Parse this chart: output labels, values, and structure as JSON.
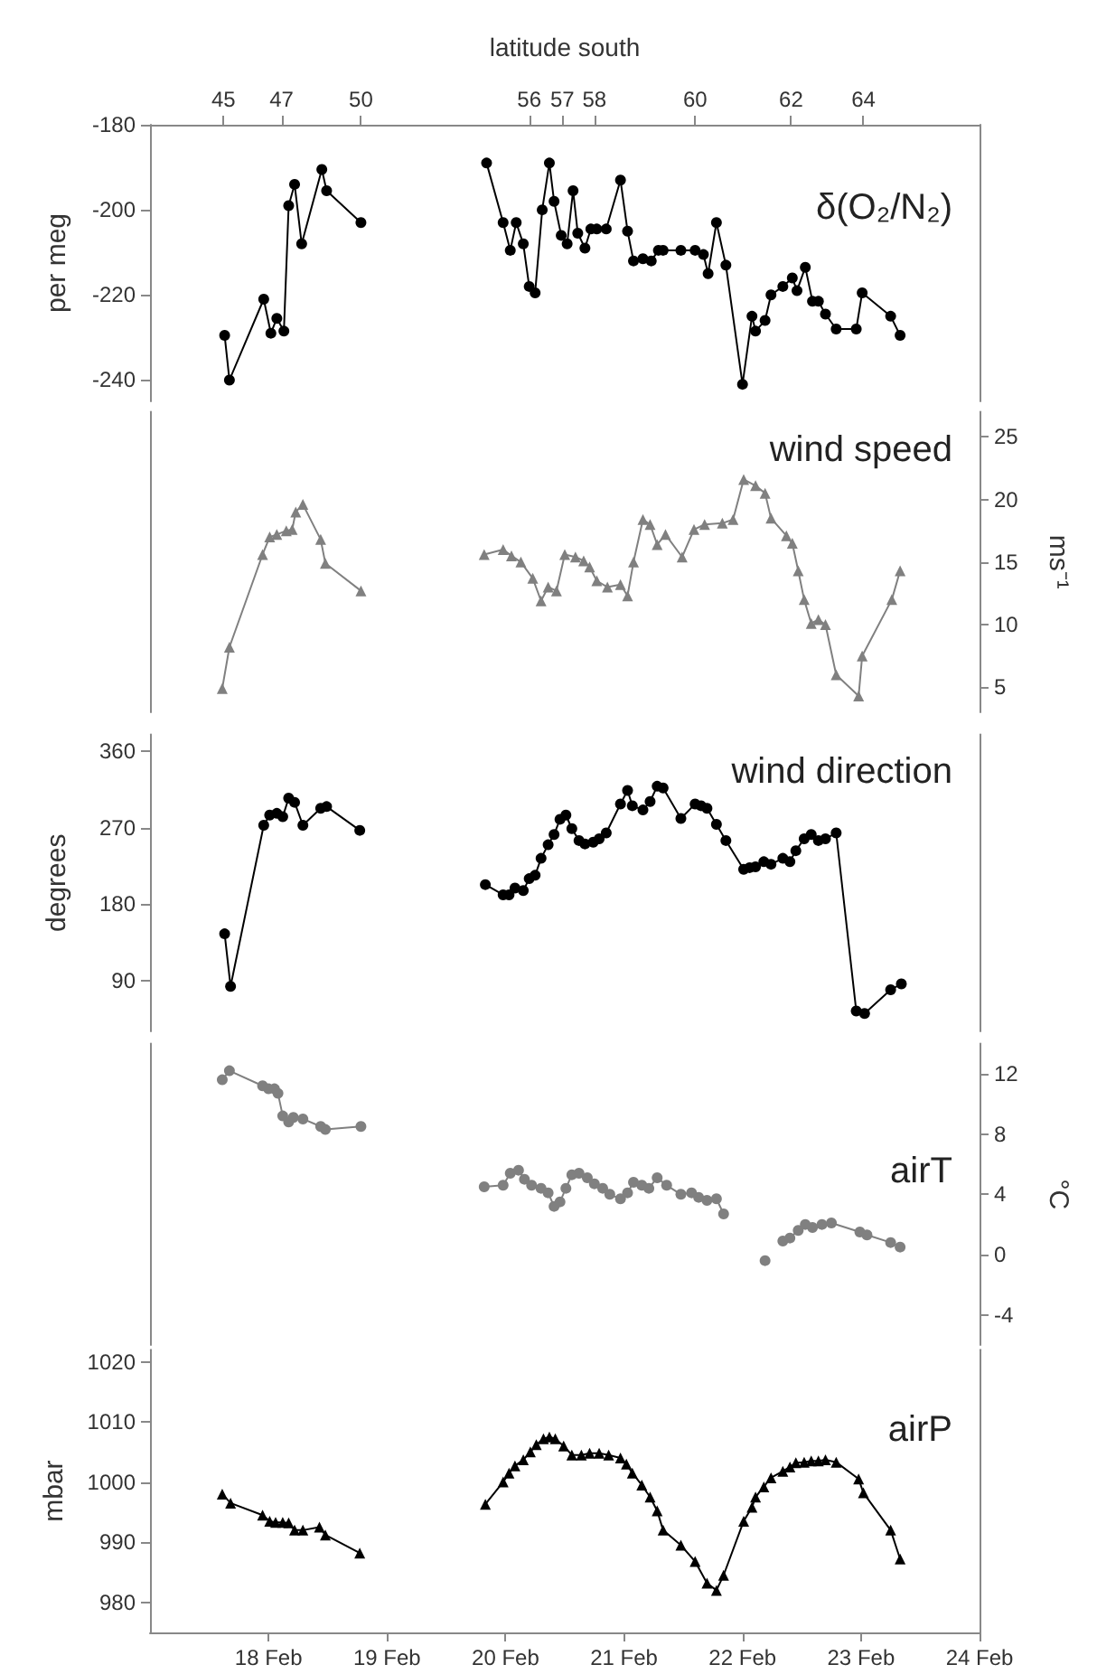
{
  "chart_data": [
    {
      "type": "line",
      "title": "δ(O₂/N₂)",
      "ylabel": "per meg",
      "x2label": "latitude south",
      "xlim": [
        "--02-17",
        "--02-24"
      ],
      "x2lim": [
        "--02-17",
        "--02-24"
      ],
      "x2ticks": [
        {
          "value": "--02-17T14:53",
          "label": "45"
        },
        {
          "value": "--02-18T02:38",
          "label": "47"
        },
        {
          "value": "--02-18T18:43",
          "label": "50"
        },
        {
          "value": "--02-20T04:48",
          "label": "56"
        },
        {
          "value": "--02-20T11:31",
          "label": "57"
        },
        {
          "value": "--02-20T18:00",
          "label": "58"
        },
        {
          "value": "--02-21T14:24",
          "label": "60"
        },
        {
          "value": "--02-22T09:50",
          "label": "62"
        },
        {
          "value": "--02-23T00:29",
          "label": "64"
        }
      ],
      "ylim": [
        -245,
        -180
      ],
      "yticks": [
        -240,
        -220,
        -200,
        -180
      ],
      "tick_labels": "y",
      "marker": "circle",
      "line_style": "solid",
      "x": [
        "--02-17T15:07",
        "--02-17T16:05",
        "--02-17T23:02",
        "--02-18T00:29",
        "--02-18T01:41",
        "--02-18T03:07",
        "--02-18T04:05",
        "--02-18T05:17",
        "--02-18T06:43",
        "--02-18T10:48",
        "--02-18T11:46",
        "--02-18T18:43",
        "--02-19T07:12",
        "--02-19T20:10",
        "--02-19T23:31",
        "--02-20T00:58",
        "--02-20T02:10",
        "--02-20T03:36",
        "--02-20T04:48",
        "--02-20T06:00",
        "--02-20T07:26",
        "--02-20T08:53",
        "--02-20T09:50",
        "--02-20T11:17",
        "--02-20T12:29",
        "--02-20T13:41",
        "--02-20T14:38",
        "--02-20T16:05",
        "--02-20T17:17",
        "--02-20T18:29",
        "--02-20T20:24",
        "--02-20T23:17",
        "--02-21T00:43",
        "--02-21T01:55",
        "--02-21T03:50",
        "--02-21T05:31",
        "--02-21T06:58",
        "--02-21T07:55",
        "--02-21T11:31",
        "--02-21T14:24",
        "--02-21T16:05",
        "--02-21T17:02",
        "--02-21T18:43",
        "--02-21T20:38",
        "--02-22T00:00",
        "--02-22T01:55",
        "--02-22T02:38",
        "--02-22T04:34",
        "--02-22T05:46",
        "--02-22T08:10",
        "--02-22T10:05",
        "--02-22T11:02",
        "--02-22T12:43",
        "--02-22T14:10",
        "--02-22T15:22",
        "--02-22T16:48",
        "--02-22T18:58",
        "--02-22T23:02",
        "--02-23T00:14",
        "--02-23T06:00",
        "--02-23T07:55"
      ],
      "series": [
        {
          "color": "#000000",
          "values": [
            -229.5,
            -240,
            -221,
            -229,
            -225.5,
            -228.5,
            -199,
            -194,
            -208,
            -190.5,
            -195.5,
            -203,
            null,
            -189,
            -203,
            -209.5,
            -203,
            -208,
            -218,
            -219.5,
            -200,
            -189,
            -198,
            -206,
            -208,
            -195.5,
            -205.5,
            -209,
            -204.5,
            -204.5,
            -204.5,
            -193,
            -205,
            -212,
            -211.5,
            -212,
            -209.5,
            -209.5,
            -209.5,
            -209.5,
            -210.5,
            -215,
            -203,
            -213,
            -241,
            -225,
            -228.5,
            -226,
            -220,
            -218,
            -216,
            -219,
            -213.5,
            -221.5,
            -221.5,
            -224.5,
            -228,
            -228,
            -219.5,
            -225,
            -229.5
          ]
        }
      ]
    },
    {
      "type": "line",
      "title": "wind speed",
      "y2label": "ms⁻¹",
      "xlim": [
        "--02-17",
        "--02-24"
      ],
      "y2lim": [
        3,
        27
      ],
      "y2ticks": [
        5,
        10,
        15,
        20,
        25
      ],
      "tick_labels": "y2",
      "marker": "triangle",
      "line_style": "solid",
      "x": [
        "--02-17T14:38",
        "--02-17T16:05",
        "--02-17T22:48",
        "--02-18T00:14",
        "--02-18T01:41",
        "--02-18T03:36",
        "--02-18T04:48",
        "--02-18T05:31",
        "--02-18T06:58",
        "--02-18T10:34",
        "--02-18T11:31",
        "--02-18T18:43",
        "--02-19T07:12",
        "--02-19T19:41",
        "--02-19T23:31",
        "--02-20T01:12",
        "--02-20T03:07",
        "--02-20T05:31",
        "--02-20T07:12",
        "--02-20T08:38",
        "--02-20T10:19",
        "--02-20T12:00",
        "--02-20T14:10",
        "--02-20T15:50",
        "--02-20T17:02",
        "--02-20T18:29",
        "--02-20T20:38",
        "--02-20T23:17",
        "--02-21T00:43",
        "--02-21T01:55",
        "--02-21T03:50",
        "--02-21T05:17",
        "--02-21T06:43",
        "--02-21T08:24",
        "--02-21T11:46",
        "--02-21T14:10",
        "--02-21T16:19",
        "--02-21T19:55",
        "--02-21T22:05",
        "--02-22T00:14",
        "--02-22T02:38",
        "--02-22T04:34",
        "--02-22T05:46",
        "--02-22T08:53",
        "--02-22T10:05",
        "--02-22T11:17",
        "--02-22T12:29",
        "--02-22T13:55",
        "--02-22T15:22",
        "--02-22T16:48",
        "--02-22T18:58",
        "--02-22T23:31",
        "--02-23T00:14",
        "--02-23T06:14",
        "--02-23T07:55"
      ],
      "series": [
        {
          "color": "#808080",
          "axis": "y2",
          "values": [
            4.9,
            8.2,
            15.6,
            17,
            17.2,
            17.5,
            17.6,
            19,
            19.6,
            16.8,
            14.9,
            12.7,
            null,
            15.6,
            16,
            15.5,
            15,
            13.7,
            11.9,
            13,
            12.7,
            15.6,
            15.4,
            15.1,
            14.6,
            13.5,
            13,
            13.2,
            12.3,
            15,
            18.4,
            18,
            16.4,
            17.2,
            15.4,
            17.6,
            18,
            18.1,
            18.4,
            21.6,
            21.1,
            20.5,
            18.5,
            17.1,
            16.5,
            14.3,
            12,
            10.1,
            10.4,
            10,
            6,
            4.3,
            7.5,
            12,
            14.3
          ]
        }
      ]
    },
    {
      "type": "line",
      "title": "wind direction",
      "ylabel": "degrees",
      "xlim": [
        "--02-17",
        "--02-24"
      ],
      "ylim": [
        30,
        380
      ],
      "yticks": [
        90,
        180,
        270,
        360
      ],
      "tick_labels": "y",
      "marker": "circle",
      "line_style": "solid",
      "x": [
        "--02-17T15:07",
        "--02-17T16:19",
        "--02-17T23:02",
        "--02-18T00:14",
        "--02-18T01:41",
        "--02-18T02:53",
        "--02-18T04:05",
        "--02-18T05:17",
        "--02-18T06:58",
        "--02-18T10:34",
        "--02-18T11:46",
        "--02-18T18:29",
        "--02-19T07:12",
        "--02-19T19:55",
        "--02-19T23:31",
        "--02-20T00:43",
        "--02-20T01:55",
        "--02-20T03:36",
        "--02-20T04:48",
        "--02-20T06:00",
        "--02-20T07:12",
        "--02-20T08:38",
        "--02-20T09:50",
        "--02-20T11:02",
        "--02-20T12:14",
        "--02-20T13:26",
        "--02-20T14:53",
        "--02-20T16:05",
        "--02-20T17:46",
        "--02-20T18:58",
        "--02-20T20:24",
        "--02-20T23:17",
        "--02-21T00:43",
        "--02-21T01:41",
        "--02-21T03:50",
        "--02-21T05:17",
        "--02-21T06:43",
        "--02-21T07:55",
        "--02-21T11:31",
        "--02-21T14:24",
        "--02-21T15:36",
        "--02-21T16:48",
        "--02-21T18:43",
        "--02-21T20:38",
        "--02-22T00:14",
        "--02-22T01:26",
        "--02-22T02:38",
        "--02-22T04:19",
        "--02-22T05:46",
        "--02-22T08:10",
        "--02-22T09:36",
        "--02-22T10:48",
        "--02-22T12:29",
        "--02-22T13:55",
        "--02-22T15:22",
        "--02-22T16:48",
        "--02-22T18:58",
        "--02-22T23:02",
        "--02-23T00:43",
        "--02-23T06:00",
        "--02-23T08:10"
      ],
      "series": [
        {
          "color": "#000000",
          "values": [
            145,
            83,
            273,
            285,
            287,
            283,
            305,
            300,
            273,
            293,
            295,
            267,
            null,
            203,
            191,
            191,
            199,
            196,
            210,
            214,
            234,
            250,
            262,
            280,
            285,
            269,
            255,
            251,
            253,
            257,
            264,
            298,
            314,
            296,
            291,
            301,
            319,
            317,
            281,
            298,
            296,
            293,
            274,
            255,
            221,
            223,
            224,
            230,
            227,
            234,
            230,
            243,
            257,
            262,
            255,
            257,
            264,
            54,
            51,
            79,
            86
          ]
        }
      ]
    },
    {
      "type": "line",
      "title": "airT",
      "y2label": "°C",
      "xlim": [
        "--02-17",
        "--02-24"
      ],
      "y2lim": [
        -6,
        14
      ],
      "y2ticks": [
        -4,
        0,
        4,
        8,
        12
      ],
      "tick_labels": "y2",
      "marker": "circle",
      "line_style": "solid",
      "x": [
        "--02-17T14:38",
        "--02-17T16:05",
        "--02-17T22:48",
        "--02-18T00:00",
        "--02-18T01:12",
        "--02-18T01:55",
        "--02-18T02:53",
        "--02-18T04:05",
        "--02-18T05:02",
        "--02-18T06:58",
        "--02-18T10:34",
        "--02-18T11:31",
        "--02-18T18:43",
        "--02-19T07:12",
        "--02-19T19:41",
        "--02-19T23:31",
        "--02-20T00:58",
        "--02-20T02:38",
        "--02-20T03:50",
        "--02-20T05:17",
        "--02-20T07:12",
        "--02-20T08:38",
        "--02-20T09:50",
        "--02-20T11:02",
        "--02-20T12:14",
        "--02-20T13:26",
        "--02-20T14:53",
        "--02-20T16:34",
        "--02-20T18:00",
        "--02-20T19:41",
        "--02-20T21:07",
        "--02-20T23:17",
        "--02-21T00:43",
        "--02-21T01:55",
        "--02-21T03:36",
        "--02-21T05:02",
        "--02-21T06:43",
        "--02-21T08:38",
        "--02-21T11:31",
        "--02-21T13:41",
        "--02-21T15:07",
        "--02-21T16:48",
        "--02-21T18:43",
        "--02-21T20:10",
        "--02-22T00:00",
        "--02-22T04:34",
        "--02-22T06:29",
        "--02-22T08:10",
        "--02-22T09:36",
        "--02-22T11:17",
        "--02-22T12:43",
        "--02-22T14:10",
        "--02-22T16:05",
        "--02-22T18:00",
        "--02-22T23:46",
        "--02-23T01:12",
        "--02-23T06:00",
        "--02-23T07:55"
      ],
      "series": [
        {
          "color": "#808080",
          "axis": "y2",
          "values": [
            11.6,
            12.2,
            11.2,
            11,
            11,
            10.7,
            9.2,
            8.8,
            9.1,
            9,
            8.5,
            8.3,
            8.5,
            null,
            4.5,
            4.6,
            5.4,
            5.6,
            5,
            4.6,
            4.4,
            4.1,
            3.2,
            3.5,
            4.4,
            5.3,
            5.4,
            5.1,
            4.7,
            4.4,
            4,
            3.7,
            4.1,
            4.8,
            4.6,
            4.4,
            5.1,
            4.6,
            4,
            4.1,
            3.8,
            3.6,
            3.7,
            2.7,
            null,
            -0.4,
            null,
            0.9,
            1.1,
            1.6,
            2,
            1.8,
            2,
            2.1,
            1.5,
            1.3,
            0.8,
            0.5
          ]
        }
      ]
    },
    {
      "type": "line",
      "title": "airP",
      "ylabel": "mbar",
      "xlim": [
        "--02-17",
        "--02-24"
      ],
      "xticks": [
        {
          "value": "--02-18",
          "label": "18 Feb"
        },
        {
          "value": "--02-19",
          "label": "19 Feb"
        },
        {
          "value": "--02-20",
          "label": "20 Feb"
        },
        {
          "value": "--02-21",
          "label": "21 Feb"
        },
        {
          "value": "--02-22",
          "label": "22 Feb"
        },
        {
          "value": "--02-23",
          "label": "23 Feb"
        },
        {
          "value": "--02-24",
          "label": "24 Feb"
        }
      ],
      "ylim": [
        975,
        1022
      ],
      "yticks": [
        980,
        990,
        1000,
        1010,
        1020
      ],
      "marker": "triangle",
      "line_style": "solid",
      "x": [
        "--02-17T14:38",
        "--02-17T16:19",
        "--02-17T22:48",
        "--02-18T00:14",
        "--02-18T01:26",
        "--02-18T02:53",
        "--02-18T04:05",
        "--02-18T05:17",
        "--02-18T06:58",
        "--02-18T10:19",
        "--02-18T11:31",
        "--02-18T18:29",
        "--02-19T07:12",
        "--02-19T19:55",
        "--02-19T23:31",
        "--02-20T00:43",
        "--02-20T01:55",
        "--02-20T03:36",
        "--02-20T05:02",
        "--02-20T06:14",
        "--02-20T07:41",
        "--02-20T08:53",
        "--02-20T10:05",
        "--02-20T11:46",
        "--02-20T13:26",
        "--02-20T15:22",
        "--02-20T17:02",
        "--02-20T18:58",
        "--02-20T20:53",
        "--02-20T23:17",
        "--02-21T00:29",
        "--02-21T01:41",
        "--02-21T03:36",
        "--02-21T05:17",
        "--02-21T06:43",
        "--02-21T07:55",
        "--02-21T11:31",
        "--02-21T14:24",
        "--02-21T16:48",
        "--02-21T18:43",
        "--02-21T20:10",
        "--02-22T00:14",
        "--02-22T01:55",
        "--02-22T02:38",
        "--02-22T04:19",
        "--02-22T05:46",
        "--02-22T08:10",
        "--02-22T09:36",
        "--02-22T10:48",
        "--02-22T12:29",
        "--02-22T13:55",
        "--02-22T15:22",
        "--02-22T16:48",
        "--02-22T18:58",
        "--02-22T23:31",
        "--02-23T00:29",
        "--02-23T06:00",
        "--02-23T07:55"
      ],
      "series": [
        {
          "color": "#000000",
          "values": [
            998,
            996.5,
            994.5,
            993.5,
            993.3,
            993.3,
            993.2,
            992,
            992,
            992.5,
            991.2,
            988.2,
            null,
            996.3,
            1000,
            1001.5,
            1002.7,
            1003.7,
            1005,
            1006.2,
            1007.2,
            1007.5,
            1007.2,
            1006,
            1004.5,
            1004.5,
            1004.8,
            1004.8,
            1004.5,
            1004,
            1003,
            1001.5,
            999.5,
            997.5,
            995.2,
            992,
            989.5,
            986.8,
            983.2,
            982,
            984.5,
            993.5,
            995.8,
            997.5,
            999.2,
            1000.7,
            1001.8,
            1002.5,
            1003.2,
            1003.3,
            1003.5,
            1003.5,
            1003.7,
            1003.3,
            1000.5,
            998.2,
            992,
            987.2
          ]
        }
      ]
    }
  ]
}
